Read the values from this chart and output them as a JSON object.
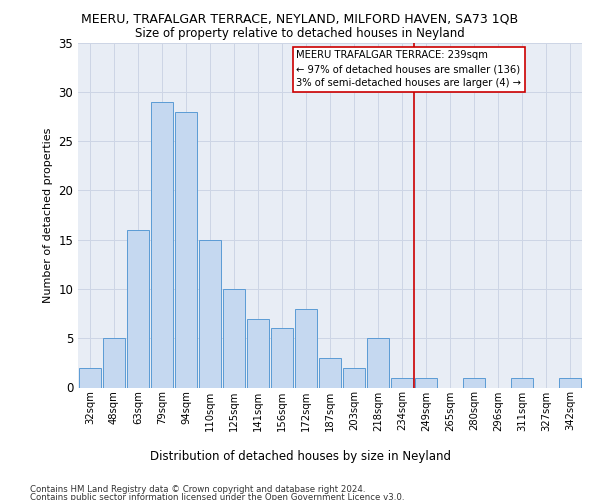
{
  "title": "MEERU, TRAFALGAR TERRACE, NEYLAND, MILFORD HAVEN, SA73 1QB",
  "subtitle": "Size of property relative to detached houses in Neyland",
  "xlabel_bottom": "Distribution of detached houses by size in Neyland",
  "ylabel": "Number of detached properties",
  "categories": [
    "32sqm",
    "48sqm",
    "63sqm",
    "79sqm",
    "94sqm",
    "110sqm",
    "125sqm",
    "141sqm",
    "156sqm",
    "172sqm",
    "187sqm",
    "203sqm",
    "218sqm",
    "234sqm",
    "249sqm",
    "265sqm",
    "280sqm",
    "296sqm",
    "311sqm",
    "327sqm",
    "342sqm"
  ],
  "values": [
    2,
    5,
    16,
    29,
    28,
    15,
    10,
    7,
    6,
    8,
    3,
    2,
    5,
    1,
    1,
    0,
    1,
    0,
    1,
    0,
    1
  ],
  "bar_color": "#c5d8f0",
  "bar_edge_color": "#5b9bd5",
  "vline_x": 13.5,
  "vline_color": "#cc0000",
  "annotation_text_line1": "MEERU TRAFALGAR TERRACE: 239sqm",
  "annotation_text_line2": "← 97% of detached houses are smaller (136)",
  "annotation_text_line3": "3% of semi-detached houses are larger (4) →",
  "annotation_box_color": "#cc0000",
  "ylim": [
    0,
    35
  ],
  "yticks": [
    0,
    5,
    10,
    15,
    20,
    25,
    30,
    35
  ],
  "grid_color": "#cdd5e5",
  "bg_color": "#e8edf5",
  "footer_line1": "Contains HM Land Registry data © Crown copyright and database right 2024.",
  "footer_line2": "Contains public sector information licensed under the Open Government Licence v3.0."
}
